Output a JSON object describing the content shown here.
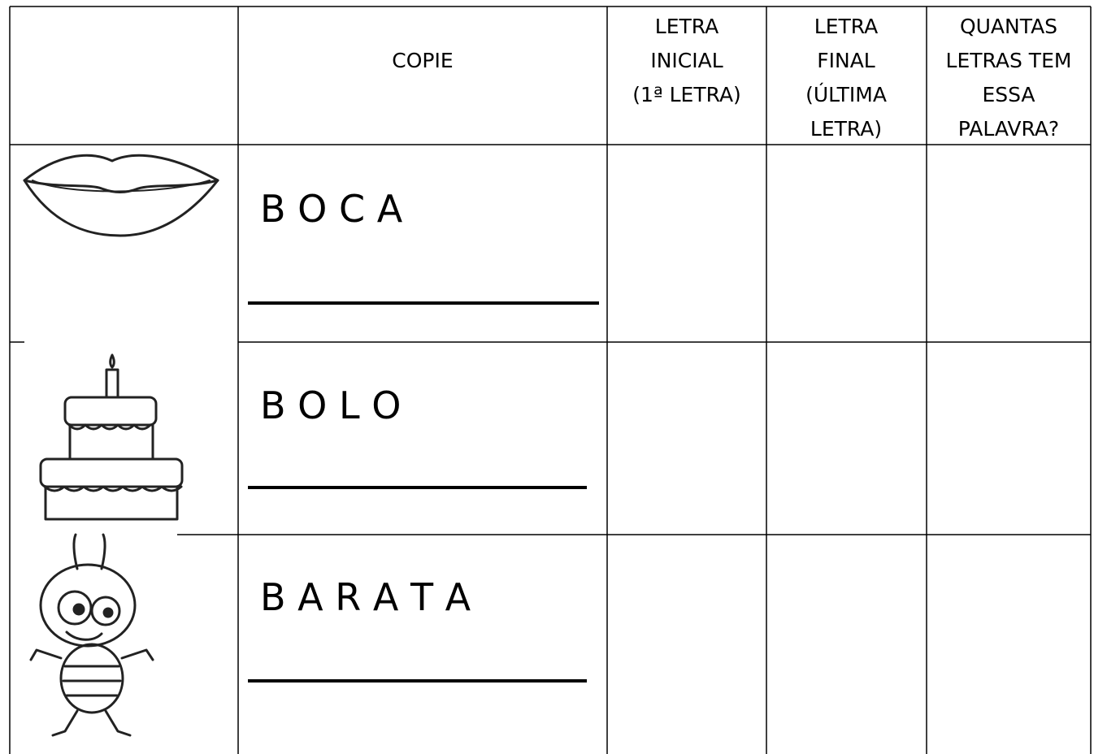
{
  "table": {
    "columns": [
      [
        "COPIE"
      ],
      [
        "LETRA",
        "INICIAL",
        "(1ª LETRA)"
      ],
      [
        "LETRA",
        "FINAL",
        "(ÚLTIMA",
        "LETRA)"
      ],
      [
        "QUANTAS",
        "LETRAS TEM",
        "ESSA",
        "PALAVRA?"
      ]
    ],
    "rows": [
      "B O C A",
      "B O L O",
      "B A R A T A"
    ]
  }
}
